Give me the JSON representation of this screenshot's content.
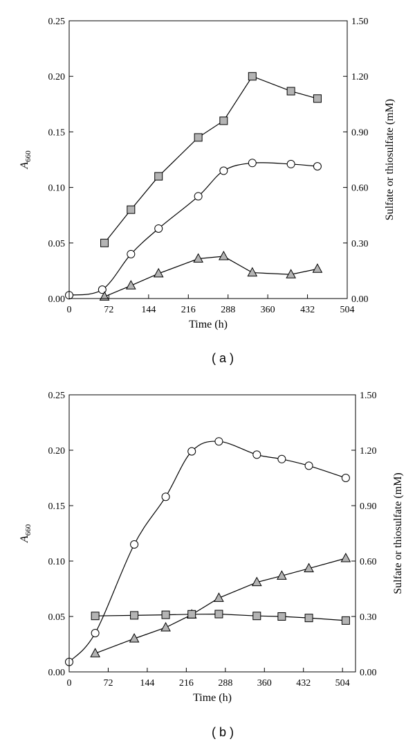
{
  "chart_data": [
    {
      "type": "line",
      "panel_label": "( a )",
      "xlabel": "Time (h)",
      "ylabel_main": "A",
      "ylabel_sub": "660",
      "y2label": "Sulfate or thiosulfate (mM)",
      "xlim": [
        0,
        504
      ],
      "ylim": [
        0,
        0.25
      ],
      "y2lim": [
        0,
        1.5
      ],
      "xticks": [
        "0",
        "72",
        "144",
        "216",
        "288",
        "360",
        "432",
        "504"
      ],
      "yticks": [
        "0.00",
        "0.05",
        "0.10",
        "0.15",
        "0.20",
        "0.25"
      ],
      "y2ticks": [
        "0.00",
        "0.30",
        "0.60",
        "0.90",
        "1.20",
        "1.50"
      ],
      "series": [
        {
          "marker": "square",
          "axis": "right",
          "smooth": false,
          "x": [
            64,
            112,
            162,
            234,
            280,
            332,
            402,
            450
          ],
          "y": [
            0.3,
            0.48,
            0.66,
            0.87,
            0.96,
            1.2,
            1.12,
            1.08
          ]
        },
        {
          "marker": "circle",
          "axis": "left",
          "smooth": true,
          "x": [
            0,
            60,
            112,
            162,
            234,
            280,
            332,
            402,
            450
          ],
          "y": [
            0.003,
            0.008,
            0.04,
            0.063,
            0.092,
            0.115,
            0.122,
            0.121,
            0.119
          ]
        },
        {
          "marker": "triangle",
          "axis": "right",
          "smooth": false,
          "x": [
            64,
            112,
            162,
            234,
            280,
            332,
            402,
            450
          ],
          "y": [
            0.01,
            0.07,
            0.135,
            0.215,
            0.228,
            0.14,
            0.13,
            0.16
          ]
        }
      ]
    },
    {
      "type": "line",
      "panel_label": "( b )",
      "xlabel": "Time (h)",
      "ylabel_main": "A",
      "ylabel_sub": "660",
      "y2label": "Sulfate or thiosulfate (mM)",
      "xlim": [
        0,
        528
      ],
      "ylim": [
        0,
        0.25
      ],
      "y2lim": [
        0,
        1.5
      ],
      "xticks": [
        "0",
        "72",
        "144",
        "216",
        "288",
        "360",
        "432",
        "504"
      ],
      "yticks": [
        "0.00",
        "0.05",
        "0.10",
        "0.15",
        "0.20",
        "0.25"
      ],
      "y2ticks": [
        "0.00",
        "0.30",
        "0.60",
        "0.90",
        "1.20",
        "1.50"
      ],
      "series": [
        {
          "marker": "circle",
          "axis": "left",
          "smooth": true,
          "x": [
            0,
            48,
            120,
            178,
            226,
            276,
            346,
            392,
            442,
            510
          ],
          "y": [
            0.009,
            0.035,
            0.115,
            0.158,
            0.199,
            0.208,
            0.196,
            0.192,
            0.186,
            0.175
          ]
        },
        {
          "marker": "triangle",
          "axis": "right",
          "smooth": false,
          "x": [
            48,
            120,
            178,
            226,
            276,
            346,
            392,
            442,
            510
          ],
          "y": [
            0.1,
            0.18,
            0.24,
            0.31,
            0.4,
            0.485,
            0.52,
            0.56,
            0.615
          ]
        },
        {
          "marker": "square",
          "axis": "right",
          "smooth": false,
          "x": [
            48,
            120,
            178,
            226,
            276,
            346,
            392,
            442,
            510
          ],
          "y": [
            0.303,
            0.306,
            0.309,
            0.312,
            0.313,
            0.303,
            0.3,
            0.292,
            0.278
          ]
        }
      ]
    }
  ]
}
